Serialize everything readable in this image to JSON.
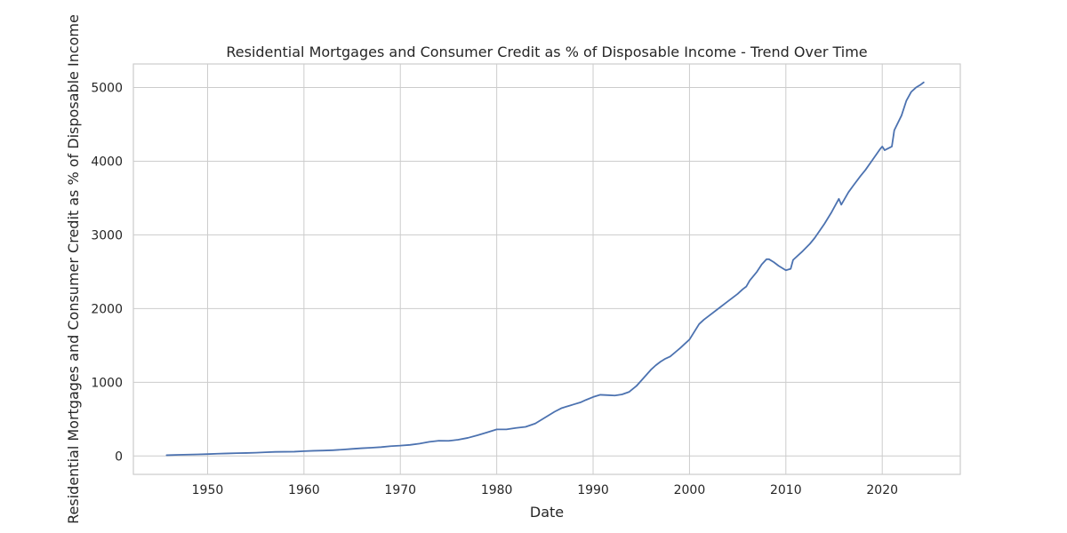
{
  "chart_data": {
    "type": "line",
    "title": "Residential Mortgages and Consumer Credit as % of Disposable Income - Trend Over Time",
    "xlabel": "Date",
    "ylabel": "Residential Mortgages and Consumer Credit as % of Disposable Income",
    "xlim": [
      1942.3,
      2028.1
    ],
    "ylim": [
      -250,
      5320
    ],
    "x_ticks": [
      1950,
      1960,
      1970,
      1980,
      1990,
      2000,
      2010,
      2020
    ],
    "y_ticks": [
      0,
      1000,
      2000,
      3000,
      4000,
      5000
    ],
    "grid": true,
    "legend": "none",
    "colors": {
      "series": "#4c72b0"
    },
    "series": [
      {
        "x": [
          1945.75,
          1947,
          1948,
          1949,
          1950,
          1951,
          1952,
          1953,
          1954,
          1955,
          1956,
          1957,
          1958,
          1959,
          1960,
          1961,
          1962,
          1963,
          1964,
          1965,
          1966,
          1967,
          1968,
          1969,
          1970,
          1971,
          1972,
          1973,
          1974,
          1975,
          1976,
          1977,
          1978,
          1979,
          1980,
          1981,
          1982,
          1983,
          1984,
          1985,
          1986,
          1986.75,
          1987.5,
          1988,
          1988.75,
          1989.25,
          1990,
          1990.75,
          1991.5,
          1992.25,
          1993,
          1993.75,
          1994.5,
          1995.25,
          1996,
          1996.5,
          1997,
          1997.5,
          1998,
          1999,
          2000,
          2001,
          2001.5,
          2002,
          2003,
          2004,
          2005,
          2005.5,
          2005.9,
          2006.25,
          2007,
          2007.5,
          2008,
          2008.25,
          2008.75,
          2009.25,
          2010,
          2010.5,
          2010.75,
          2011,
          2011.75,
          2012.5,
          2013,
          2014,
          2014.75,
          2015.5,
          2015.75,
          2016.5,
          2017,
          2017.75,
          2018.25,
          2019,
          2019.75,
          2020,
          2020.25,
          2021,
          2021.25,
          2022,
          2022.5,
          2023,
          2023.5,
          2024,
          2024.3
        ],
        "y": [
          10,
          15,
          18,
          21,
          25,
          30,
          34,
          38,
          40,
          44,
          50,
          55,
          57,
          58,
          65,
          70,
          73,
          78,
          86,
          96,
          105,
          112,
          120,
          133,
          140,
          150,
          168,
          192,
          207,
          205,
          220,
          245,
          280,
          320,
          360,
          360,
          380,
          395,
          440,
          520,
          600,
          650,
          680,
          700,
          730,
          760,
          800,
          830,
          825,
          820,
          835,
          870,
          950,
          1060,
          1170,
          1230,
          1280,
          1320,
          1350,
          1460,
          1580,
          1790,
          1850,
          1900,
          2000,
          2100,
          2200,
          2260,
          2300,
          2380,
          2500,
          2600,
          2670,
          2670,
          2630,
          2580,
          2520,
          2540,
          2660,
          2690,
          2780,
          2880,
          2960,
          3150,
          3310,
          3490,
          3410,
          3580,
          3670,
          3800,
          3880,
          4020,
          4160,
          4200,
          4150,
          4200,
          4420,
          4620,
          4820,
          4940,
          5000,
          5040,
          5070
        ]
      }
    ]
  }
}
